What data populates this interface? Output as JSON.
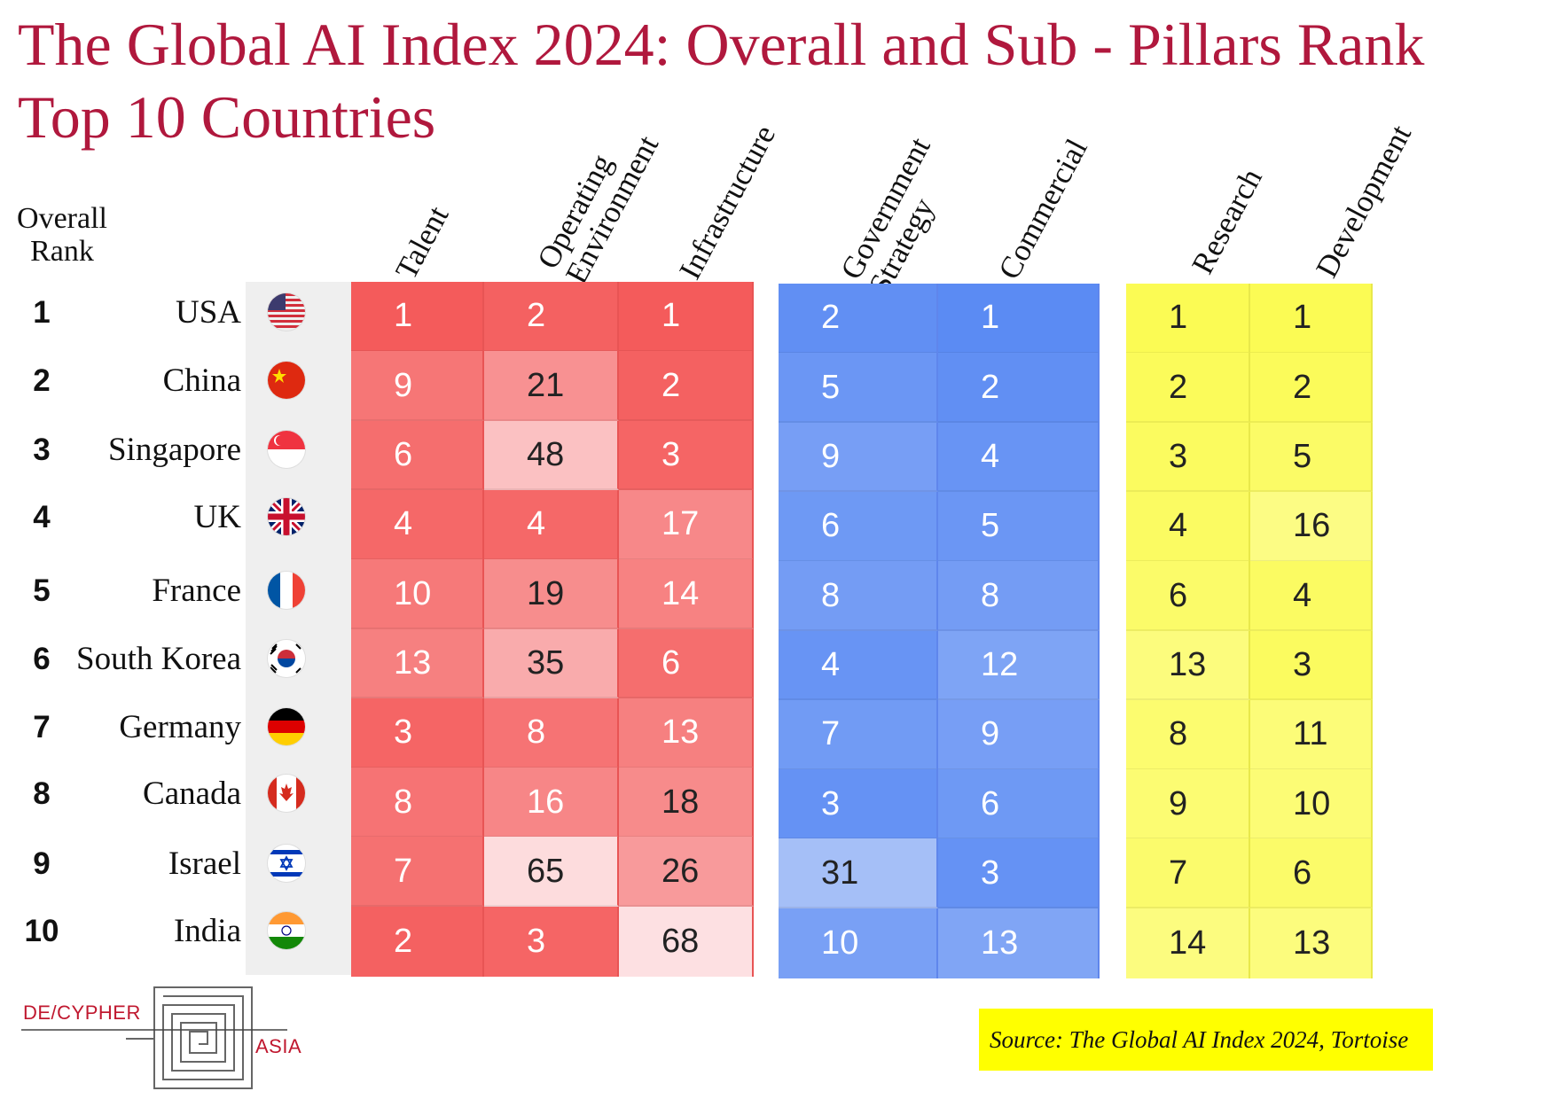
{
  "title": {
    "line1": "The Global AI Index 2024: Overall and Sub - Pillars Rank",
    "line2": "Top 10 Countries"
  },
  "rank_header": {
    "line1": "Overall",
    "line2": "Rank"
  },
  "columns": [
    {
      "key": "talent",
      "lines": [
        "Talent"
      ],
      "group": "red"
    },
    {
      "key": "operating_environment",
      "lines": [
        "Operating",
        "Environment"
      ],
      "group": "red"
    },
    {
      "key": "infrastructure",
      "lines": [
        "Infrastructure"
      ],
      "group": "red"
    },
    {
      "key": "government_strategy",
      "lines": [
        "Government",
        "Strategy"
      ],
      "group": "blue"
    },
    {
      "key": "commercial",
      "lines": [
        "Commercial"
      ],
      "group": "blue"
    },
    {
      "key": "research",
      "lines": [
        "Research"
      ],
      "group": "yellow"
    },
    {
      "key": "development",
      "lines": [
        "Development"
      ],
      "group": "yellow"
    }
  ],
  "group_colors": {
    "red": {
      "strong": "#f45b5b",
      "weak": "#fde0e2",
      "text_light": "#ffffff",
      "text_dark": "#222222"
    },
    "blue": {
      "strong": "#5b8bf3",
      "weak": "#e3eafb",
      "text_light": "#ffffff",
      "text_dark": "#222222"
    },
    "yellow": {
      "strong": "#fbfb54",
      "weak": "#fefee8",
      "text_light": "#222222",
      "text_dark": "#222222"
    }
  },
  "chart_data": {
    "type": "table",
    "rows": [
      {
        "rank": "1",
        "country": "USA",
        "flag": "usa-flag-icon",
        "values": [
          1,
          2,
          1,
          2,
          1,
          1,
          1
        ]
      },
      {
        "rank": "2",
        "country": "China",
        "flag": "china-flag-icon",
        "values": [
          9,
          21,
          2,
          5,
          2,
          2,
          2
        ]
      },
      {
        "rank": "3",
        "country": "Singapore",
        "flag": "singapore-flag-icon",
        "values": [
          6,
          48,
          3,
          9,
          4,
          3,
          5
        ]
      },
      {
        "rank": "4",
        "country": "UK",
        "flag": "uk-flag-icon",
        "values": [
          4,
          4,
          17,
          6,
          5,
          4,
          16
        ]
      },
      {
        "rank": "5",
        "country": "France",
        "flag": "france-flag-icon",
        "values": [
          10,
          19,
          14,
          8,
          8,
          6,
          4
        ]
      },
      {
        "rank": "6",
        "country": "South Korea",
        "flag": "south-korea-flag-icon",
        "values": [
          13,
          35,
          6,
          4,
          12,
          13,
          3
        ]
      },
      {
        "rank": "7",
        "country": "Germany",
        "flag": "germany-flag-icon",
        "values": [
          3,
          8,
          13,
          7,
          9,
          8,
          11
        ]
      },
      {
        "rank": "8",
        "country": "Canada",
        "flag": "canada-flag-icon",
        "values": [
          8,
          16,
          18,
          3,
          6,
          9,
          10
        ]
      },
      {
        "rank": "9",
        "country": "Israel",
        "flag": "israel-flag-icon",
        "values": [
          7,
          65,
          26,
          31,
          3,
          7,
          6
        ]
      },
      {
        "rank": "10",
        "country": "India",
        "flag": "india-flag-icon",
        "values": [
          2,
          3,
          68,
          10,
          13,
          14,
          13
        ]
      }
    ]
  },
  "source": "Source: The Global AI Index 2024, Tortoise",
  "logo": {
    "text1": "DE/CYPHER",
    "text2": "ASIA",
    "icon": "maze-logo-icon"
  }
}
